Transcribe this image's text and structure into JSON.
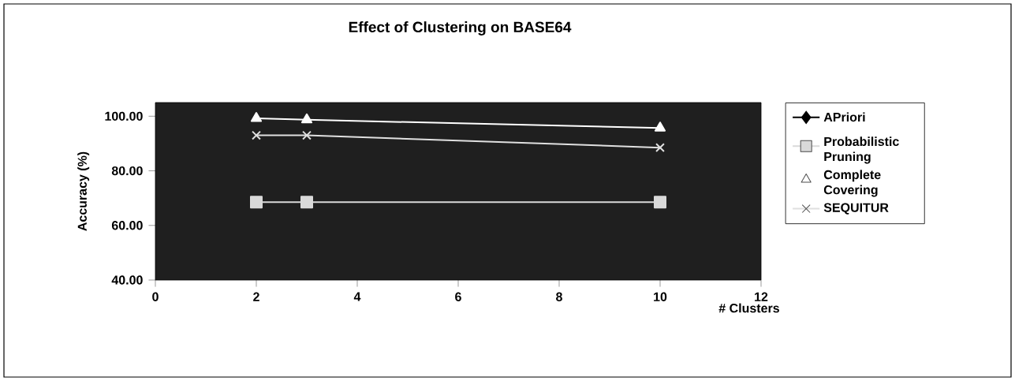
{
  "chart_data": {
    "type": "line",
    "title": "Effect of Clustering on BASE64",
    "xlabel": "# Clusters",
    "ylabel": "Accuracy (%)",
    "x": [
      2,
      3,
      10
    ],
    "series": [
      {
        "name": "APriori",
        "color": "#000000",
        "marker": "diamond",
        "values": [
          null,
          null,
          null
        ]
      },
      {
        "name": "Probabilistic Pruning",
        "color": "#d9d9d9",
        "marker": "square",
        "values": [
          68.5,
          68.5,
          68.5
        ]
      },
      {
        "name": "Complete Covering",
        "color": "#ffffff",
        "marker": "triangle",
        "values": [
          99.2,
          98.7,
          95.7
        ]
      },
      {
        "name": "SEQUITUR",
        "color": "#e0e0e0",
        "marker": "cross",
        "values": [
          93,
          93,
          88.5
        ]
      }
    ],
    "xlim": [
      0,
      12
    ],
    "xticks": [
      0,
      2,
      4,
      6,
      8,
      10,
      12
    ],
    "ylim": [
      40,
      105
    ],
    "yticks": [
      {
        "value": 40,
        "label": "40.00"
      },
      {
        "value": 60,
        "label": "60.00"
      },
      {
        "value": 80,
        "label": "80.00"
      },
      {
        "value": 100,
        "label": "100.00"
      }
    ],
    "legend": "right",
    "grid": false
  }
}
